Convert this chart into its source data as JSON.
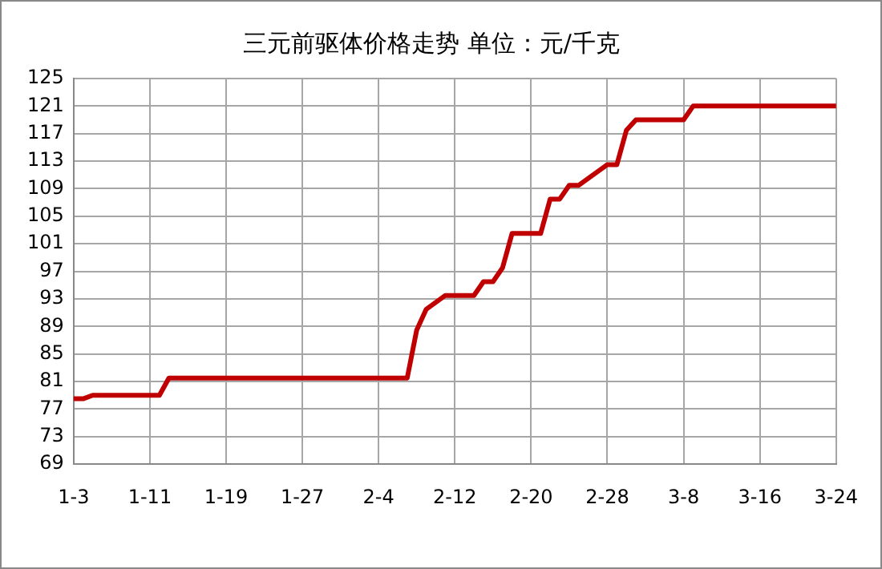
{
  "chart_data": {
    "type": "line",
    "title": "三元前驱体价格走势 单位：元/千克",
    "x": [
      "--01-03",
      "--01-04",
      "--01-05",
      "--01-12",
      "--01-13",
      "--02-07",
      "--02-08",
      "--02-09",
      "--02-11",
      "--02-14",
      "--02-15",
      "--02-16",
      "--02-17",
      "--02-18",
      "--02-21",
      "--02-22",
      "--02-23",
      "--02-24",
      "--02-25",
      "--02-28",
      "--03-01",
      "--03-02",
      "--03-03",
      "--03-08",
      "--03-09",
      "--03-24"
    ],
    "series": [
      {
        "color": "#c00000",
        "values": [
          78.5,
          78.5,
          79,
          79,
          81.5,
          81.5,
          88.5,
          91.5,
          93.5,
          93.5,
          95.5,
          95.5,
          97.5,
          102.5,
          102.5,
          107.5,
          107.5,
          109.5,
          109.5,
          112.5,
          112.5,
          117.5,
          119,
          119,
          121,
          121
        ]
      }
    ],
    "xlim": [
      "--01-03",
      "--03-24"
    ],
    "xticks": [
      {
        "value": "--01-03",
        "label": "1-3"
      },
      {
        "value": "--01-11",
        "label": "1-11"
      },
      {
        "value": "--01-19",
        "label": "1-19"
      },
      {
        "value": "--01-27",
        "label": "1-27"
      },
      {
        "value": "--02-04",
        "label": "2-4"
      },
      {
        "value": "--02-12",
        "label": "2-12"
      },
      {
        "value": "--02-20",
        "label": "2-20"
      },
      {
        "value": "--02-28",
        "label": "2-28"
      },
      {
        "value": "--03-08",
        "label": "3-8"
      },
      {
        "value": "--03-16",
        "label": "3-16"
      },
      {
        "value": "--03-24",
        "label": "3-24"
      }
    ],
    "ylim": [
      69,
      125
    ],
    "yticks": [
      69,
      73,
      77,
      81,
      85,
      89,
      93,
      97,
      101,
      105,
      109,
      113,
      117,
      121,
      125
    ],
    "grid": true,
    "legend": false,
    "marker": "none",
    "line_style": "solid"
  }
}
